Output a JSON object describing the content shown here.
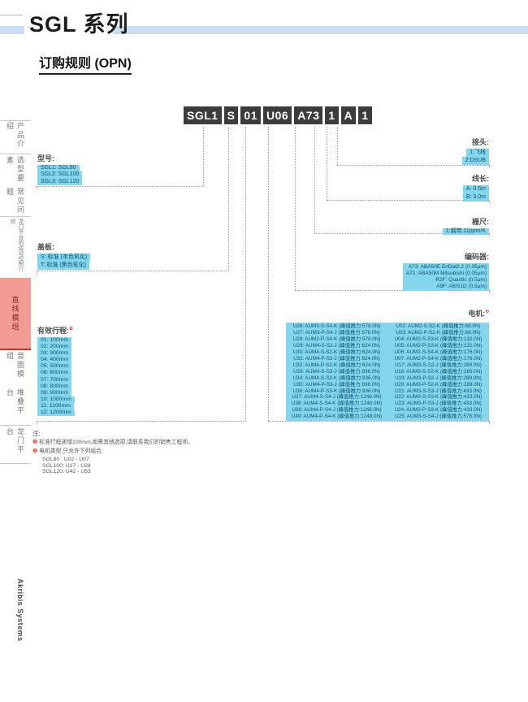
{
  "page": {
    "title": "SGL 系列",
    "section_heading": "订购规则 (OPN)",
    "brand": "Akribis Systems",
    "note_title": "注:"
  },
  "part_number": {
    "segments": [
      "SGL1",
      "S",
      "01",
      "U06",
      "A73",
      "1",
      "A",
      "1"
    ]
  },
  "sidebar": {
    "tabs": [
      {
        "label": "产品介绍",
        "active": false
      },
      {
        "label": "选型要素",
        "active": false
      },
      {
        "label": "常见问题",
        "active": false
      },
      {
        "label": "龙门平台的运动控制介绍",
        "active": false
      },
      {
        "label": "直线模组",
        "active": true
      },
      {
        "label": "音圈模组",
        "active": false
      },
      {
        "label": "堆叠平台",
        "active": false
      },
      {
        "label": "龙门平台",
        "active": false
      }
    ]
  },
  "sections": {
    "model": {
      "label": "型号:",
      "options": [
        "SGL1: SGL80",
        "SGL2: SGL100",
        "SGL3: SGL120"
      ]
    },
    "cover": {
      "label": "盖板:",
      "options": [
        "S: 标准 (本色氧化)",
        "T: 标准 (黑色氧化)"
      ]
    },
    "stroke": {
      "label": "有效行程:",
      "marker": "❶",
      "options": [
        "01: 100mm",
        "02: 200mm",
        "03: 300mm",
        "04: 400mm",
        "05: 500mm",
        "06: 600mm",
        "07: 700mm",
        "08: 800mm",
        "09: 900mm",
        "10: 1000mm",
        "11: 1100mm",
        "12: 1200mm"
      ]
    },
    "connector": {
      "label": "接头:",
      "options": [
        "1:飞线",
        "2:DSUB"
      ]
    },
    "cable": {
      "label": "线长:",
      "options": [
        "A: 0.5m",
        "B: 3.0m"
      ]
    },
    "scale": {
      "label": "栅尺:",
      "options": [
        "1:钢带,11ppm/K"
      ]
    },
    "encoder": {
      "label": "编码器:",
      "options": [
        "A73: ABA50E EnDat2.2 (0.05μm)",
        "A71: ABA50M Mitsubishi (0.05μm)",
        "R2F: Quantic (0.5μm)",
        "A9F: ABI51D (0.5μm)"
      ]
    },
    "motor": {
      "label": "电机:",
      "marker": "❷",
      "left": [
        "U26: AUM3-S-S4-K (峰值推力:578.0N)",
        "U27: AUM3-P-S4-J (峰值推力:578.0N)",
        "U28: AUM2-P-S4-K (峰值推力:578.0N)",
        "U29: AUM4-S-S2-J (峰值推力:624.0N)",
        "U30: AUM4-S-S2-K (峰值推力:624.0N)",
        "U31: AUM4-P-S2-J (峰值推力:624.0N)",
        "U32: AUM4-P-S2-K (峰值推力:624.0N)",
        "U33: AUM4-S-S3-J (峰值推力:936.0N)",
        "U34: AUM4-S-S3-K (峰值推力:936.0N)",
        "U35: AUM4-P-S3-J (峰值推力:936.0N)",
        "U36: AUM4-P-S3-K (峰值推力:936.0N)",
        "U37: AUM4-S-S4-J (峰值推力:1248.0N)",
        "U38: AUM4-S-S4-K (峰值推力:1248.0N)",
        "U39: AUM4-P-S4-J (峰值推力:1248.0N)",
        "U40: AUM4-P-S4-K (峰值推力:1248.0N)"
      ],
      "right": [
        "U02: AUM2-S-S2-K (峰值推力:88.0N)",
        "U03: AUM2-P-S2-K (峰值推力:88.0N)",
        "U04: AUM2-S-S3-K (峰值推力:132.0N)",
        "U05: AUM2-P-S3-K (峰值推力:132.0N)",
        "U06: AUM2-S-S4-K (峰值推力:176.0N)",
        "U07: AUM2-P-S4-K (峰值推力:176.0N)",
        "U17: AUM3-S-S2-J (峰值推力:289.0N)",
        "U18: AUM3-S-S2-K (峰值推力:289.0N)",
        "U19: AUM3-P-S2-J (峰值推力:289.0N)",
        "U20: AUM3-P-S2-K (峰值推力:289.0N)",
        "U21: AUM3-S-S3-J (峰值推力:433.0N)",
        "U22: AUM3-S-S3-K (峰值推力:433.0N)",
        "U23: AUM3-P-S3-J (峰值推力:433.0N)",
        "U24: AUM3-P-S3-K (峰值推力:433.0N)",
        "U25: AUM3-S-S4-J (峰值推力:578.0N)"
      ]
    }
  },
  "notes": {
    "items": [
      {
        "marker": "❶",
        "text": "标准行程递增100mm,如需其他选项,请联系我们的销售工程师。"
      },
      {
        "marker": "❷",
        "text": "电机类型,只允许下列组合:"
      }
    ],
    "combos": [
      "SGL80  : U02 - U07",
      "SGL100: U17 - U28",
      "SGL120: U42 - U53"
    ]
  },
  "colors": {
    "highlight_cyan": "#84d6ee",
    "option_text": "#0d5173",
    "accent_red": "#e8453a",
    "band_blue": "#c9def0",
    "active_tab_bg": "#f29b95"
  }
}
